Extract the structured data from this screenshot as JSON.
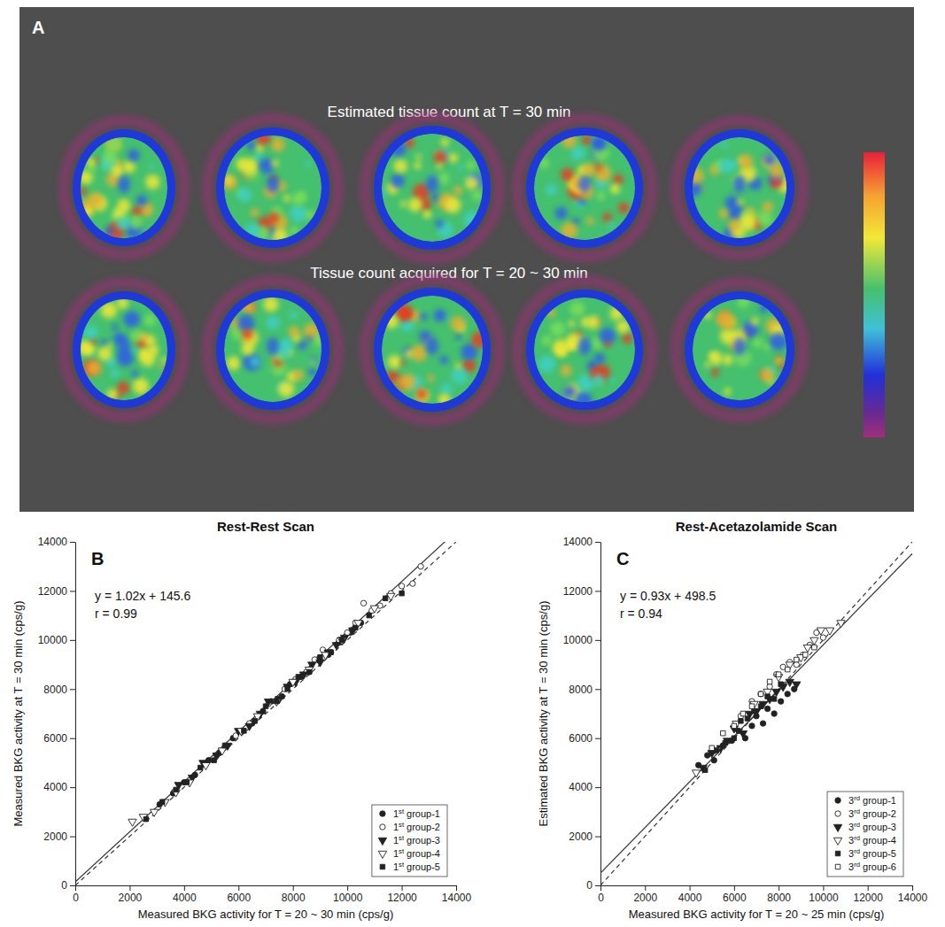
{
  "chart_data": [
    {
      "type": "image",
      "panel": "A",
      "rows": [
        {
          "title": "Estimated tissue count at T = 30 min"
        },
        {
          "title": "Tissue count acquired for T = 20 ~ 30 min"
        }
      ]
    },
    {
      "type": "scatter",
      "panel": "B",
      "title": "Rest-Rest Scan",
      "x_label": "Measured BKG activity for T = 20 ~ 30 min (cps/g)",
      "y_label": "Measured BKG activity at T = 30 min (cps/g)",
      "xlim": [
        0,
        14000
      ],
      "xticks": [
        0,
        2000,
        4000,
        6000,
        8000,
        10000,
        12000,
        14000
      ],
      "ylim": [
        0,
        14000
      ],
      "yticks": [
        0,
        2000,
        4000,
        6000,
        8000,
        10000,
        12000,
        14000
      ],
      "grid": false,
      "legend": "bottom-right",
      "annotations": [
        "y = 1.02x + 145.6",
        "r = 0.99"
      ],
      "fit_line": {
        "slope": 1.02,
        "intercept": 145.6,
        "line_style": "solid"
      },
      "identity_line": {
        "slope": 1,
        "intercept": 0,
        "line_style": "dashed"
      },
      "series": [
        {
          "name": "1st group-1",
          "marker": "circle",
          "color": "#222222",
          "x": [
            3100,
            3600,
            4000,
            4400,
            4900,
            5300,
            5800,
            6100,
            6500,
            6900,
            7200,
            7600,
            7900,
            8300,
            8600,
            8900,
            9300,
            9700,
            10100,
            10500
          ],
          "values": [
            3300,
            3750,
            4200,
            4500,
            5100,
            5400,
            6000,
            6300,
            6600,
            7100,
            7500,
            7700,
            8200,
            8500,
            8700,
            9200,
            9400,
            9900,
            10300,
            10700
          ]
        },
        {
          "name": "1st group-2",
          "marker": "circle-open",
          "color": "#222222",
          "x": [
            5200,
            5900,
            6400,
            7100,
            7700,
            8100,
            8500,
            8800,
            9100,
            9400,
            9700,
            10000,
            10300,
            10600,
            10900,
            11200,
            11600,
            12000,
            12400,
            12700
          ],
          "values": [
            5300,
            6100,
            6600,
            7400,
            8000,
            8400,
            8700,
            9200,
            9600,
            9500,
            10000,
            10300,
            10700,
            11500,
            11200,
            11400,
            11900,
            12200,
            12300,
            13000
          ]
        },
        {
          "name": "1st group-3",
          "marker": "triangle-down",
          "color": "#222222",
          "x": [
            3800,
            4300,
            4700,
            5200,
            5600,
            6000,
            6400,
            6800,
            7100,
            7500,
            7800,
            8100,
            8400,
            8700,
            9000,
            9300,
            9600,
            9900,
            10200
          ],
          "values": [
            4100,
            4400,
            5000,
            5300,
            5700,
            6300,
            6500,
            7000,
            7500,
            7600,
            8100,
            8300,
            8600,
            9000,
            9100,
            9500,
            9800,
            10100,
            10400
          ]
        },
        {
          "name": "1st group-4",
          "marker": "triangle-down-open",
          "color": "#222222",
          "x": [
            2100,
            2500,
            2900,
            3300,
            3700,
            4200,
            4800,
            5400,
            6100,
            6700,
            7400,
            8000,
            8600,
            9200,
            9800,
            10400,
            11000,
            11600
          ],
          "values": [
            2600,
            2800,
            3000,
            3400,
            3800,
            4200,
            4900,
            5500,
            6300,
            6900,
            7500,
            8300,
            8800,
            9400,
            10000,
            10700,
            11300,
            11800
          ]
        },
        {
          "name": "1st group-5",
          "marker": "square",
          "color": "#222222",
          "x": [
            2600,
            3200,
            3700,
            4100,
            4600,
            5100,
            5500,
            6200,
            6600,
            7000,
            7400,
            7800,
            8200,
            8600,
            9000,
            9400,
            9800,
            10300,
            10800,
            11400,
            12000
          ],
          "values": [
            2700,
            3400,
            3900,
            4200,
            4800,
            5100,
            5700,
            6300,
            6700,
            7300,
            7500,
            8000,
            8500,
            8700,
            9300,
            9500,
            10000,
            10500,
            11000,
            11700,
            11900
          ]
        }
      ]
    },
    {
      "type": "scatter",
      "panel": "C",
      "title": "Rest-Acetazolamide Scan",
      "x_label": "Measured BKG activity for T = 20 ~ 25 min (cps/g)",
      "y_label": "Estimated BKG activity at T = 30 min (cps/g)",
      "xlim": [
        0,
        14000
      ],
      "xticks": [
        0,
        2000,
        4000,
        6000,
        8000,
        10000,
        12000,
        14000
      ],
      "ylim": [
        0,
        14000
      ],
      "yticks": [
        0,
        2000,
        4000,
        6000,
        8000,
        10000,
        12000,
        14000
      ],
      "grid": false,
      "legend": "bottom-right",
      "annotations": [
        "y = 0.93x + 498.5",
        "r = 0.94"
      ],
      "fit_line": {
        "slope": 0.93,
        "intercept": 498.5,
        "line_style": "solid"
      },
      "identity_line": {
        "slope": 1,
        "intercept": 0,
        "line_style": "dashed"
      },
      "series": [
        {
          "name": "3rd group-1",
          "marker": "circle",
          "color": "#222222",
          "x": [
            4400,
            4800,
            5100,
            5500,
            5900,
            6200,
            6500,
            6800,
            7000,
            7300,
            7500,
            7800,
            8100,
            8400,
            8700
          ],
          "values": [
            4900,
            5300,
            5100,
            5700,
            5900,
            6300,
            6000,
            6500,
            6900,
            6600,
            7200,
            7000,
            7500,
            7800,
            8000
          ]
        },
        {
          "name": "3rd group-2",
          "marker": "circle-open",
          "color": "#222222",
          "x": [
            6300,
            6800,
            7200,
            7600,
            7900,
            8200,
            8500,
            8800,
            9100,
            9400,
            9700,
            10000
          ],
          "values": [
            6900,
            7500,
            7800,
            8100,
            8600,
            8900,
            9100,
            9000,
            9400,
            9800,
            10300,
            10100
          ]
        },
        {
          "name": "3rd group-3",
          "marker": "triangle-down",
          "color": "#222222",
          "x": [
            4600,
            5000,
            5400,
            5700,
            6000,
            6400,
            6700,
            7000,
            7300,
            7600,
            7900,
            8200,
            8500,
            8800
          ],
          "values": [
            4800,
            5400,
            5600,
            5900,
            6400,
            6200,
            7000,
            7100,
            7400,
            7600,
            7900,
            8100,
            8300,
            8200
          ]
        },
        {
          "name": "3rd group-4",
          "marker": "triangle-down-open",
          "color": "#222222",
          "x": [
            4300,
            5200,
            6100,
            6900,
            7500,
            8000,
            8500,
            9000,
            9300,
            9600,
            9900,
            10300,
            10800
          ],
          "values": [
            4600,
            5500,
            6600,
            7400,
            7900,
            8500,
            9000,
            9300,
            9700,
            10000,
            10400,
            10400,
            10700
          ]
        },
        {
          "name": "3rd group-5",
          "marker": "square",
          "color": "#222222",
          "x": [
            4700,
            5200,
            5600,
            6000,
            6300,
            6600,
            6900,
            7200,
            7500,
            7800,
            8100
          ],
          "values": [
            4700,
            5500,
            5800,
            6000,
            6700,
            6800,
            7100,
            7300,
            7700,
            7600,
            8200
          ]
        },
        {
          "name": "3rd group-6",
          "marker": "square-open",
          "color": "#222222",
          "x": [
            5000,
            5500,
            6000,
            6400,
            6800,
            7200,
            7600,
            8000,
            8400,
            8800,
            9200,
            9600
          ],
          "values": [
            5600,
            6200,
            6500,
            7000,
            7300,
            7800,
            8300,
            8600,
            8800,
            9200,
            9400,
            9700
          ]
        }
      ]
    }
  ]
}
